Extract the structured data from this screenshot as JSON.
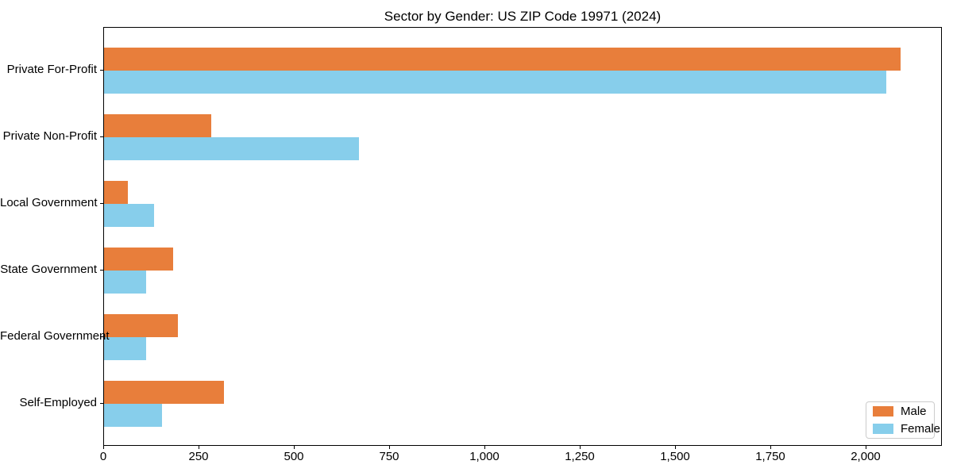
{
  "chart_data": {
    "type": "bar",
    "orientation": "horizontal",
    "title": "Sector by Gender: US ZIP Code 19971 (2024)",
    "categories": [
      "Private For-Profit",
      "Private Non-Profit",
      "Local Government",
      "State Government",
      "Federal Government",
      "Self-Employed"
    ],
    "series": [
      {
        "name": "Male",
        "color": "#e87e3b",
        "values": [
          2090,
          281,
          62,
          181,
          193,
          314
        ]
      },
      {
        "name": "Female",
        "color": "#87ceeb",
        "values": [
          2052,
          668,
          131,
          110,
          110,
          152
        ]
      }
    ],
    "xlabel": "",
    "ylabel": "",
    "xlim": [
      0,
      2200
    ],
    "x_ticks": [
      0,
      250,
      500,
      750,
      1000,
      1250,
      1500,
      1750,
      2000
    ],
    "x_tick_labels": [
      "0",
      "250",
      "500",
      "750",
      "1,000",
      "1,250",
      "1,500",
      "1,750",
      "2,000"
    ],
    "grid": false,
    "legend_position": "lower right"
  }
}
